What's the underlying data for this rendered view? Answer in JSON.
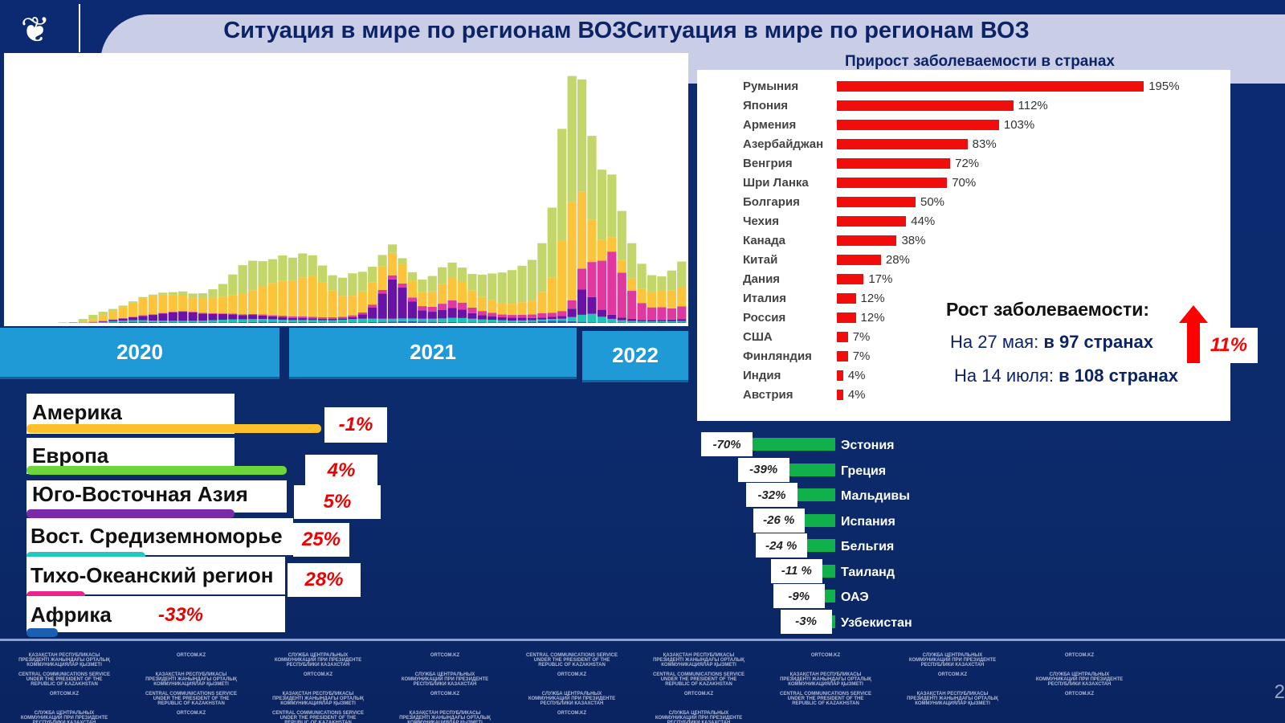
{
  "header": {
    "title": "Ситуация в мире по регионам ВОЗСитуация в мире по регионам ВОЗ",
    "subtitle": "Прирост заболеваемости в странах",
    "logo_icon": "snow-leopard-emblem"
  },
  "years": [
    "2020",
    "2021",
    "2022"
  ],
  "chart_data": [
    {
      "type": "bar",
      "stacked": true,
      "title": "",
      "xlabel": "",
      "ylabel": "",
      "grid": false,
      "x_periods": "biweekly, Jan 2020 – Jul 2022",
      "categories_years": [
        "2020",
        "2021",
        "2022"
      ],
      "ylim": [
        0,
        18
      ],
      "series": [
        {
          "name": "Африка",
          "color": "#1b5fb0",
          "values": [
            0,
            0,
            0,
            0,
            0.01,
            0.02,
            0.04,
            0.06,
            0.08,
            0.08,
            0.07,
            0.06,
            0.05,
            0.05,
            0.05,
            0.05,
            0.05,
            0.05,
            0.05,
            0.06,
            0.07,
            0.08,
            0.08,
            0.07,
            0.06,
            0.06,
            0.06,
            0.05,
            0.05,
            0.05,
            0.05,
            0.05,
            0.06,
            0.08,
            0.1,
            0.12,
            0.12,
            0.1,
            0.08,
            0.07,
            0.06,
            0.05,
            0.05,
            0.05,
            0.05,
            0.05,
            0.05,
            0.06,
            0.08,
            0.12,
            0.15,
            0.15,
            0.12,
            0.08,
            0.05,
            0.04,
            0.04,
            0.04,
            0.04,
            0.04,
            0.04,
            0.05,
            0.05,
            0.05
          ]
        },
        {
          "name": "Вост. Средиземноморье",
          "color": "#1fc3b8",
          "values": [
            0,
            0,
            0,
            0.01,
            0.03,
            0.05,
            0.08,
            0.1,
            0.12,
            0.12,
            0.1,
            0.1,
            0.1,
            0.1,
            0.1,
            0.12,
            0.15,
            0.18,
            0.2,
            0.2,
            0.2,
            0.2,
            0.18,
            0.15,
            0.15,
            0.15,
            0.15,
            0.15,
            0.15,
            0.18,
            0.22,
            0.25,
            0.25,
            0.22,
            0.2,
            0.2,
            0.2,
            0.2,
            0.22,
            0.25,
            0.3,
            0.3,
            0.25,
            0.2,
            0.18,
            0.15,
            0.12,
            0.12,
            0.12,
            0.12,
            0.13,
            0.15,
            0.3,
            0.5,
            0.6,
            0.4,
            0.25,
            0.15,
            0.1,
            0.08,
            0.07,
            0.07,
            0.07,
            0.08
          ]
        },
        {
          "name": "Юго-Восточная Азия",
          "color": "#6a11a8",
          "values": [
            0,
            0,
            0,
            0,
            0.02,
            0.05,
            0.1,
            0.15,
            0.2,
            0.3,
            0.4,
            0.5,
            0.6,
            0.65,
            0.6,
            0.5,
            0.45,
            0.4,
            0.35,
            0.3,
            0.3,
            0.25,
            0.2,
            0.2,
            0.15,
            0.15,
            0.12,
            0.1,
            0.1,
            0.1,
            0.15,
            0.3,
            0.8,
            1.8,
            2.8,
            2.2,
            1.2,
            0.6,
            0.5,
            0.6,
            0.7,
            0.6,
            0.4,
            0.3,
            0.25,
            0.2,
            0.2,
            0.2,
            0.15,
            0.15,
            0.15,
            0.2,
            0.6,
            1.8,
            1.2,
            0.5,
            0.3,
            0.2,
            0.15,
            0.1,
            0.1,
            0.1,
            0.12,
            0.15
          ]
        },
        {
          "name": "Тихо-Океанский регион",
          "color": "#e0389e",
          "values": [
            0,
            0.02,
            0.03,
            0.02,
            0.02,
            0.03,
            0.03,
            0.03,
            0.04,
            0.05,
            0.05,
            0.05,
            0.05,
            0.05,
            0.05,
            0.05,
            0.05,
            0.05,
            0.06,
            0.06,
            0.07,
            0.08,
            0.09,
            0.1,
            0.1,
            0.1,
            0.1,
            0.1,
            0.1,
            0.1,
            0.12,
            0.15,
            0.2,
            0.25,
            0.3,
            0.3,
            0.3,
            0.3,
            0.35,
            0.45,
            0.55,
            0.5,
            0.4,
            0.3,
            0.25,
            0.2,
            0.2,
            0.2,
            0.25,
            0.3,
            0.3,
            0.35,
            0.6,
            1.5,
            2.5,
            3.5,
            4.5,
            3.2,
            2.0,
            1.2,
            0.9,
            0.9,
            0.8,
            0.9
          ]
        },
        {
          "name": "Америка",
          "color": "#fcc43a",
          "values": [
            0,
            0,
            0,
            0.05,
            0.2,
            0.4,
            0.6,
            0.8,
            1.0,
            1.2,
            1.3,
            1.3,
            1.2,
            1.1,
            1.0,
            1.0,
            1.1,
            1.2,
            1.3,
            1.5,
            1.7,
            2.0,
            2.3,
            2.5,
            2.6,
            2.8,
            2.9,
            2.5,
            1.9,
            1.5,
            1.4,
            1.5,
            1.6,
            1.7,
            1.6,
            1.4,
            1.2,
            1.0,
            1.1,
            1.4,
            1.6,
            1.5,
            1.2,
            1.0,
            0.9,
            0.8,
            0.8,
            0.9,
            1.0,
            1.5,
            2.5,
            5.0,
            7.0,
            5.5,
            3.0,
            1.5,
            1.0,
            0.9,
            0.9,
            1.0,
            1.1,
            1.2,
            1.3,
            1.4
          ]
        },
        {
          "name": "Европа",
          "color": "#c3d66a",
          "values": [
            0,
            0,
            0.02,
            0.2,
            0.3,
            0.25,
            0.15,
            0.1,
            0.1,
            0.1,
            0.1,
            0.15,
            0.2,
            0.3,
            0.3,
            0.4,
            0.6,
            0.9,
            1.5,
            2.0,
            2.1,
            1.8,
            1.7,
            1.8,
            1.6,
            1.7,
            1.5,
            1.2,
            1.1,
            1.3,
            1.6,
            1.4,
            1.1,
            0.8,
            0.6,
            0.4,
            0.6,
            0.9,
            1.1,
            1.2,
            1.1,
            1.0,
            1.2,
            1.6,
            1.9,
            2.2,
            2.4,
            2.6,
            2.9,
            3.5,
            5.0,
            8.0,
            9.0,
            8.0,
            6.0,
            5.0,
            4.5,
            3.5,
            2.5,
            1.8,
            1.2,
            1.0,
            1.4,
            1.8
          ]
        }
      ]
    },
    {
      "type": "bar",
      "orientation": "horizontal",
      "title": "Прирост заболеваемости в странах",
      "xlim": [
        0,
        200
      ],
      "categories": [
        "Румыния",
        "Япония",
        "Армения",
        "Азербайджан",
        "Венгрия",
        "Шри Ланка",
        "Болгария",
        "Чехия",
        "Канада",
        "Китай",
        "Дания",
        "Италия",
        "Россия",
        "США",
        "Финляндия",
        "Индия",
        "Австрия"
      ],
      "values": [
        195,
        112,
        103,
        83,
        72,
        70,
        50,
        44,
        38,
        28,
        17,
        12,
        12,
        7,
        7,
        4,
        4
      ],
      "labels": [
        "195%",
        "112%",
        "103%",
        "83%",
        "72%",
        "70%",
        "50%",
        "44%",
        "38%",
        "28%",
        "17%",
        "12%",
        "12%",
        "7%",
        "7%",
        "4%",
        "4%"
      ],
      "color": "#f20d0d"
    },
    {
      "type": "bar",
      "orientation": "horizontal",
      "title": "",
      "xlim": [
        -75,
        0
      ],
      "categories": [
        "Эстония",
        "Греция",
        "Мальдивы",
        "Испания",
        "Бельгия",
        "Таиланд",
        "ОАЭ",
        "Узбекистан"
      ],
      "values": [
        -70,
        -39,
        -32,
        -26,
        -24,
        -11,
        -9,
        -3
      ],
      "labels": [
        "-70%",
        "-39%",
        "-32%",
        "-26 %",
        "-24 %",
        "-11 %",
        "-9%",
        "-3%"
      ],
      "color": "#10b04a"
    }
  ],
  "growth": {
    "title": "Рост заболеваемости:",
    "line1_prefix": "На 27 мая: ",
    "line1_bold": "в 97 странах",
    "line2_prefix": "На 14 июля: ",
    "line2_bold": "в 108 странах",
    "increase": "11%"
  },
  "regions": [
    {
      "name": "Америка",
      "value": "-1%",
      "color": "#fcc02a"
    },
    {
      "name": "Европа",
      "value": "4%",
      "color": "#6dd63a"
    },
    {
      "name": "Юго-Восточная Азия",
      "value": "5%",
      "color": "#7a2aa8"
    },
    {
      "name": "Вост. Средиземноморье",
      "value": "25%",
      "color": "#22c7c0"
    },
    {
      "name": "Тихо-Океанский регион",
      "value": "28%",
      "color": "#e8258f"
    },
    {
      "name": "Африка",
      "value": "-33%",
      "color": "#1b5fb0"
    }
  ],
  "footer": {
    "watermarks": [
      "ҚАЗАҚСТАН РЕСПУБЛИКАСЫ ПРЕЗИДЕНТІ ЖАНЫНДАҒЫ ОРТАЛЫҚ КОММУНИКАЦИЯЛАР ҚЫЗМЕТІ",
      "ORTCOM.KZ",
      "СЛУЖБА ЦЕНТРАЛЬНЫХ КОММУНИКАЦИЙ ПРИ ПРЕЗИДЕНТЕ РЕСПУБЛИКИ КАЗАХСТАН",
      "ORTCOM.KZ",
      "CENTRAL COMMUNICATIONS SERVICE UNDER THE PRESIDENT OF THE REPUBLIC OF KAZAKHSTAN"
    ],
    "page": "2"
  }
}
